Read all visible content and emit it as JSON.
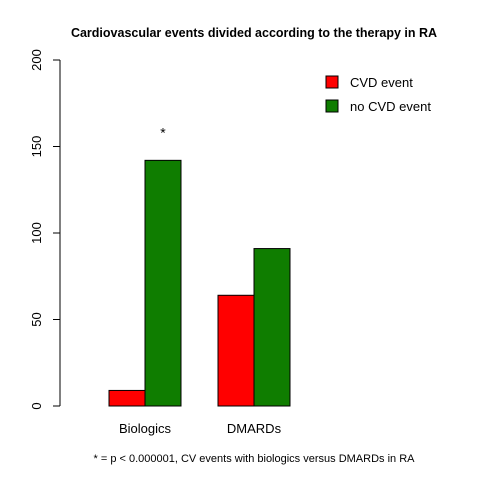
{
  "chart_data": {
    "type": "bar",
    "title": "Cardiovascular events divided according to the therapy in RA",
    "categories": [
      "Biologics",
      "DMARDs"
    ],
    "series": [
      {
        "name": "CVD event",
        "values": [
          9,
          64
        ],
        "color": "#ff0000"
      },
      {
        "name": "no CVD event",
        "values": [
          142,
          91
        ],
        "color": "#0f7d00"
      }
    ],
    "ylim": [
      0,
      200
    ],
    "yticks": [
      0,
      50,
      100,
      150,
      200
    ],
    "xlabel": "",
    "ylabel": "",
    "grid": false,
    "legend_position": "top-right",
    "annotations": [
      {
        "category": "Biologics",
        "series": "no CVD event",
        "text": "*"
      }
    ],
    "footnote": "* = p < 0.000001, CV events with biologics versus DMARDs in RA"
  }
}
